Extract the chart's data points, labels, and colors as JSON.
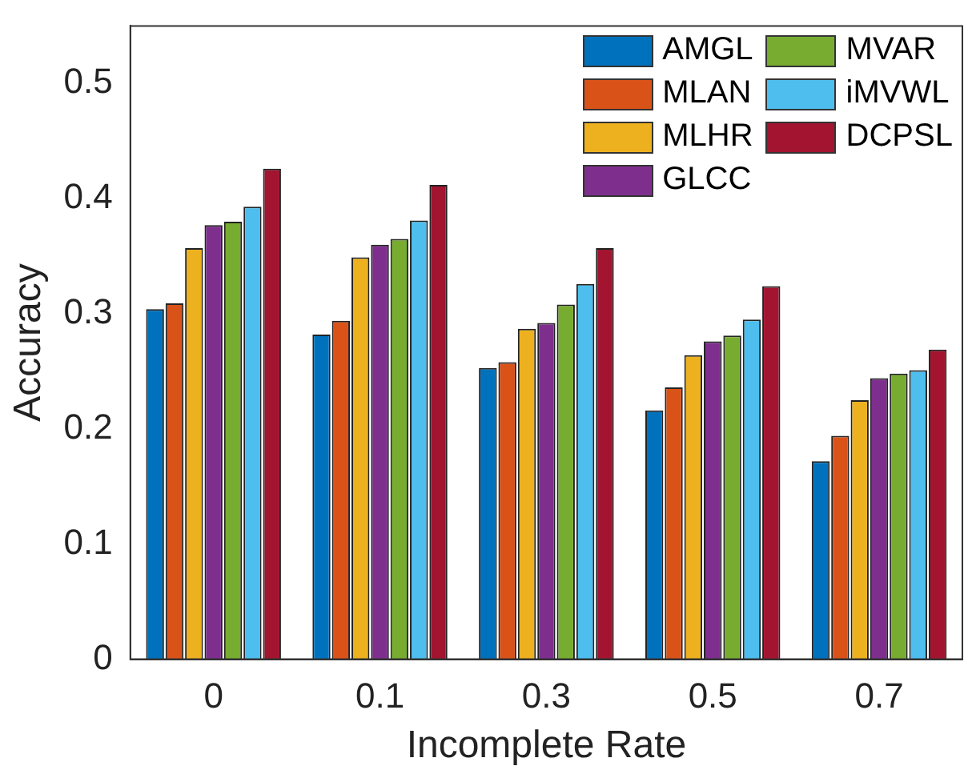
{
  "chart_data": {
    "type": "bar",
    "xlabel": "Incomplete Rate",
    "ylabel": "Accuracy",
    "categories": [
      "0",
      "0.1",
      "0.3",
      "0.5",
      "0.7"
    ],
    "series": [
      {
        "name": "AMGL",
        "color": "#0072bd",
        "values": [
          0.304,
          0.282,
          0.253,
          0.216,
          0.172
        ]
      },
      {
        "name": "MLAN",
        "color": "#d95319",
        "values": [
          0.309,
          0.294,
          0.258,
          0.236,
          0.194
        ]
      },
      {
        "name": "MLHR",
        "color": "#edb120",
        "values": [
          0.357,
          0.349,
          0.287,
          0.264,
          0.225
        ]
      },
      {
        "name": "GLCC",
        "color": "#7e2f8e",
        "values": [
          0.377,
          0.36,
          0.292,
          0.276,
          0.244
        ]
      },
      {
        "name": "MVAR",
        "color": "#77ac30",
        "values": [
          0.38,
          0.365,
          0.308,
          0.281,
          0.248
        ]
      },
      {
        "name": "iMVWL",
        "color": "#4dbeee",
        "values": [
          0.393,
          0.381,
          0.326,
          0.295,
          0.251
        ]
      },
      {
        "name": "DCPSL",
        "color": "#a2142f",
        "values": [
          0.426,
          0.412,
          0.357,
          0.324,
          0.269
        ]
      }
    ],
    "ylim": [
      0,
      0.55
    ],
    "yticks": [
      0,
      0.1,
      0.2,
      0.3,
      0.4,
      0.5
    ],
    "grid": false,
    "legend": "top right"
  }
}
